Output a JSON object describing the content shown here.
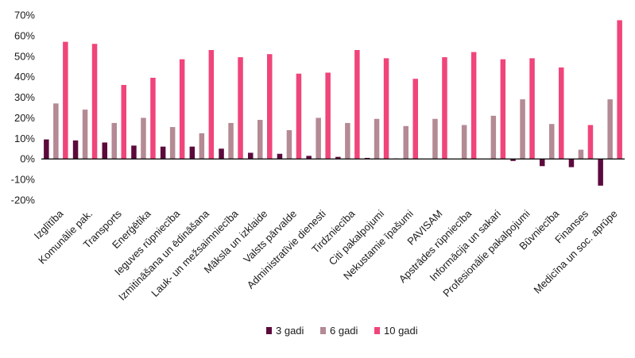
{
  "chart_data": {
    "type": "bar",
    "title": "",
    "xlabel": "",
    "ylabel": "",
    "ylim": [
      -20,
      70
    ],
    "y_ticks": [
      "-20%",
      "-10%",
      "0%",
      "10%",
      "20%",
      "30%",
      "40%",
      "50%",
      "60%",
      "70%"
    ],
    "y_tick_values": [
      -20,
      -10,
      0,
      10,
      20,
      30,
      40,
      50,
      60,
      70
    ],
    "grid": false,
    "legend_position": "bottom",
    "categories": [
      "Izglītība",
      "Komunālie pak.",
      "Transports",
      "Enerģētika",
      "Ieguves rūpniecība",
      "Izmitināšana un ēdināšana",
      "Lauk- un mežsaimniecība",
      "Māksla un izklaide",
      "Valsts pārvalde",
      "Administratīvie dienesti",
      "Tirdzniecība",
      "Citi pakalpojumi",
      "Nekustamie īpašumi",
      "PAVISAM",
      "Apstrādes rūpniecība",
      "Informācija un sakari",
      "Profesionālie pakalpojumi",
      "Būvniecība",
      "Finanses",
      "Medicīna un soc. aprūpe"
    ],
    "series": [
      {
        "name": "3 gadi",
        "color": "#5c0a3c",
        "values": [
          9.5,
          9,
          8,
          6.5,
          6,
          6,
          5,
          3,
          2.5,
          1.5,
          1,
          0.5,
          0.2,
          0,
          0,
          0,
          -1,
          -3.5,
          -4,
          -13
        ]
      },
      {
        "name": "6 gadi",
        "color": "#b48a94",
        "values": [
          27,
          24,
          17.5,
          20,
          15.5,
          12.5,
          17.5,
          19,
          14,
          20,
          17.5,
          19.5,
          16,
          19.5,
          16.5,
          21,
          29,
          17,
          4.5,
          29
        ]
      },
      {
        "name": "10 gadi",
        "color": "#f0457a",
        "values": [
          57,
          56,
          36,
          39.5,
          48.5,
          53,
          49.5,
          51,
          41.5,
          42,
          53,
          49,
          39,
          49.5,
          52,
          48.5,
          49,
          44.5,
          16.5,
          67.5
        ]
      }
    ]
  }
}
